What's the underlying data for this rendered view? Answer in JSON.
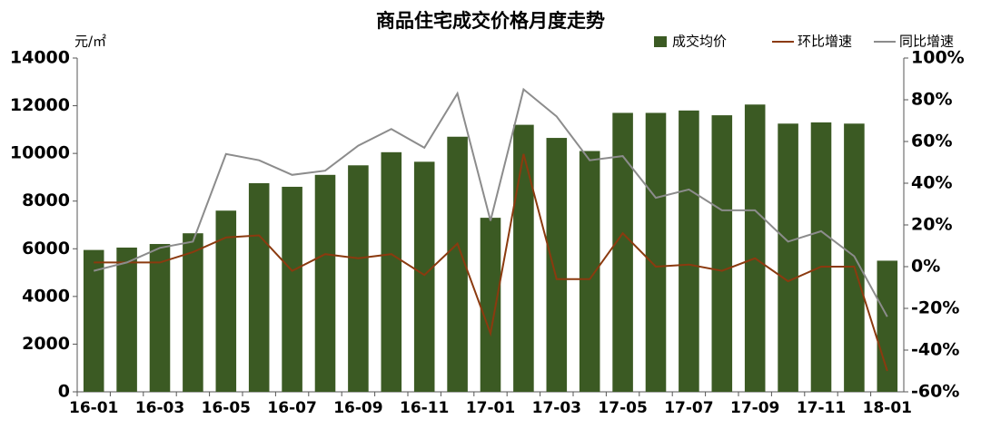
{
  "chart_data": {
    "type": "bar-line",
    "title": "商品住宅成交价格月度走势",
    "y_label": "元/㎡",
    "categories": [
      "16-01",
      null,
      "16-03",
      null,
      "16-05",
      null,
      "16-07",
      null,
      "16-09",
      null,
      "16-11",
      null,
      "17-01",
      null,
      "17-03",
      null,
      "17-05",
      null,
      "17-07",
      null,
      "17-09",
      null,
      "17-11",
      null,
      "18-01"
    ],
    "series": [
      {
        "name": "成交均价",
        "type": "bar",
        "color": "#3b5a23",
        "axis": "y",
        "values": [
          5950,
          6050,
          6200,
          6650,
          7600,
          8750,
          8600,
          9100,
          9500,
          10050,
          9650,
          10700,
          7300,
          11200,
          10650,
          10100,
          11700,
          11700,
          11800,
          11600,
          12050,
          11250,
          11300,
          11250,
          5500
        ]
      },
      {
        "name": "环比增速",
        "type": "line",
        "color": "#8b3a0f",
        "axis": "y2",
        "values": [
          2,
          2,
          2,
          7,
          14,
          15,
          -2,
          6,
          4,
          6,
          -4,
          11,
          -32,
          54,
          -6,
          -6,
          16,
          0,
          1,
          -2,
          4,
          -7,
          0,
          0,
          -50
        ]
      },
      {
        "name": "同比增速",
        "type": "line",
        "color": "#8c8c8c",
        "axis": "y2",
        "values": [
          -2,
          2,
          9,
          12,
          54,
          51,
          44,
          46,
          58,
          66,
          57,
          83,
          22,
          85,
          72,
          51,
          53,
          33,
          37,
          27,
          27,
          12,
          17,
          5,
          -24
        ]
      }
    ],
    "ylim": [
      0,
      14000
    ],
    "yticks": [
      0,
      2000,
      4000,
      6000,
      8000,
      10000,
      12000,
      14000
    ],
    "y2lim": [
      -60,
      100
    ],
    "y2ticks": [
      {
        "value": -60,
        "label": "-60%"
      },
      {
        "value": -40,
        "label": "-40%"
      },
      {
        "value": -20,
        "label": "-20%"
      },
      {
        "value": 0,
        "label": "0%"
      },
      {
        "value": 20,
        "label": "20%"
      },
      {
        "value": 40,
        "label": "40%"
      },
      {
        "value": 60,
        "label": "60%"
      },
      {
        "value": 80,
        "label": "80%"
      },
      {
        "value": 100,
        "label": "100%"
      }
    ],
    "legend": "top-right"
  }
}
